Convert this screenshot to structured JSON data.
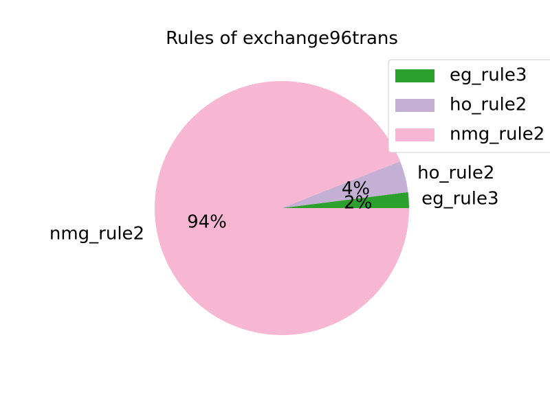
{
  "chart_data": {
    "type": "pie",
    "title": "Rules of exchange96trans",
    "slices": [
      {
        "label": "eg_rule3",
        "value": 2,
        "pct_label": "2%",
        "color": "#2ca02c"
      },
      {
        "label": "ho_rule2",
        "value": 4,
        "pct_label": "4%",
        "color": "#c5b0d5"
      },
      {
        "label": "nmg_rule2",
        "value": 94,
        "pct_label": "94%",
        "color": "#f7b6d2"
      }
    ],
    "legend": {
      "placement": "top-right",
      "entries": [
        "eg_rule3",
        "ho_rule2",
        "nmg_rule2"
      ]
    },
    "start_angle_deg": 0,
    "direction": "counterclockwise"
  }
}
